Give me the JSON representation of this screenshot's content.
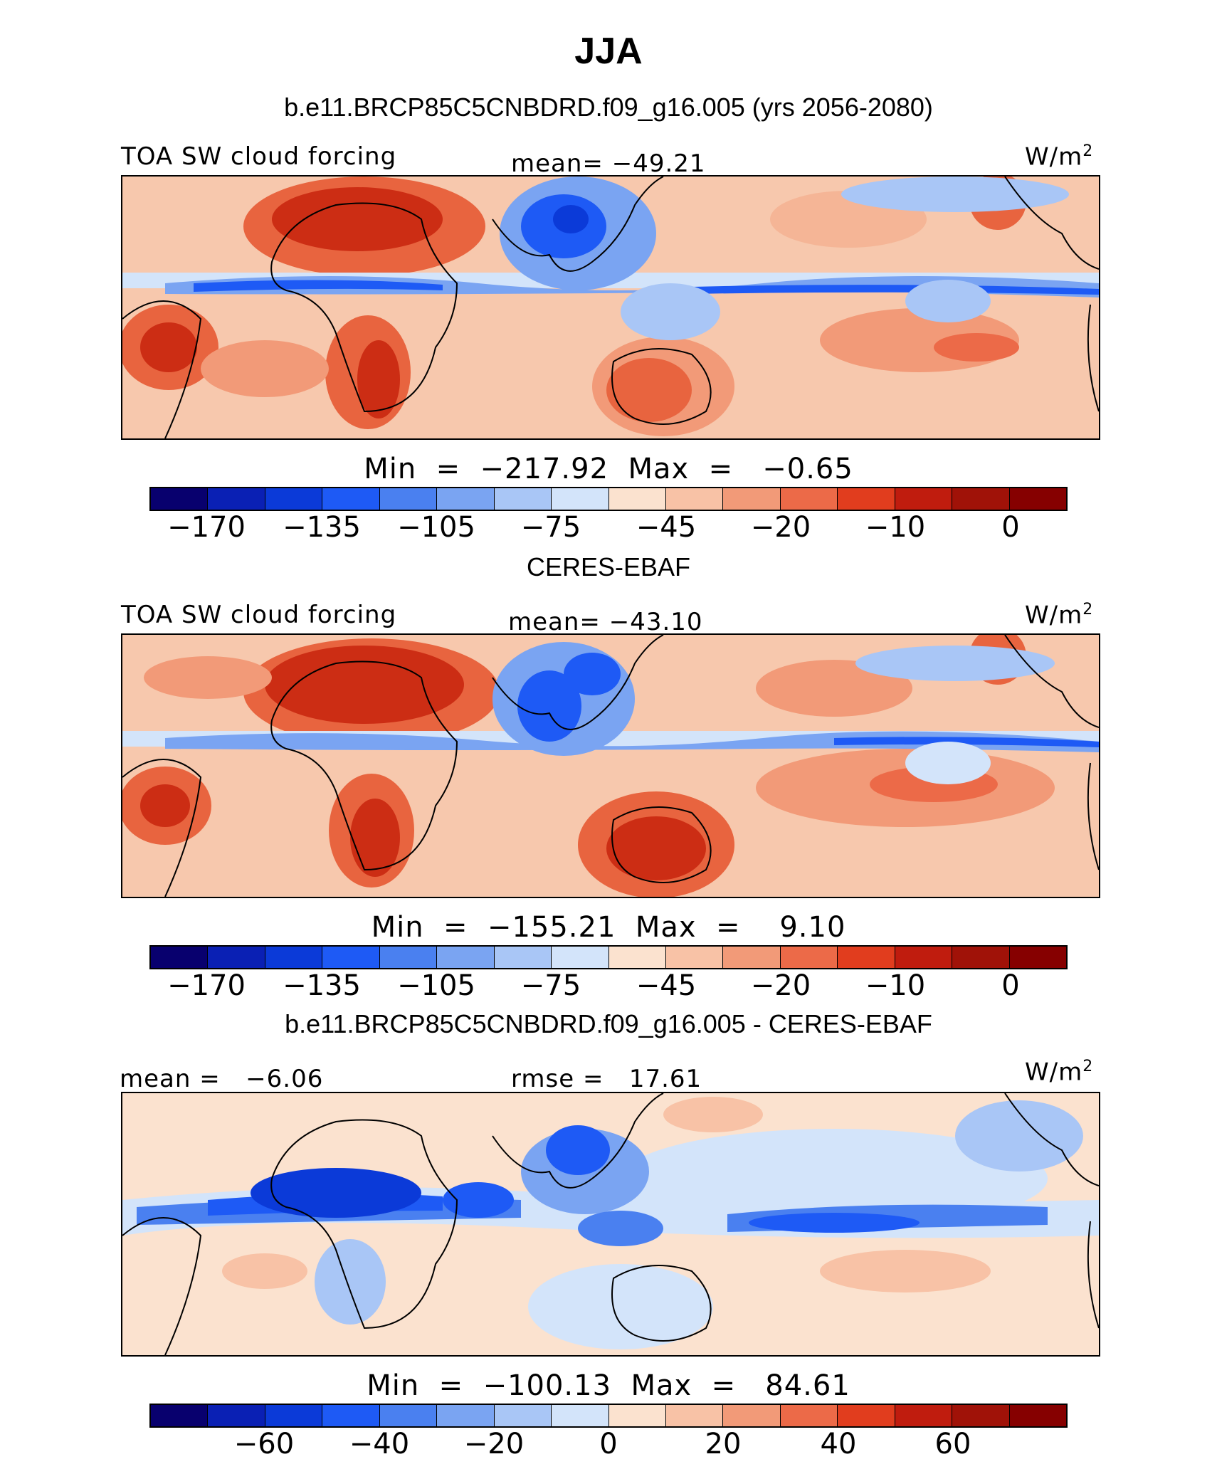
{
  "page": {
    "season": "JJA"
  },
  "panels": [
    {
      "heading": "b.e11.BRCP85C5CNBDRD.f09_g16.005 (yrs 2056-2080)",
      "left_label": "TOA SW cloud forcing",
      "center_label": "mean= −49.21",
      "units": "W/m",
      "units_exp": "2",
      "minmax": "Min  =  −217.92  Max  =   −0.65",
      "ticks": [
        "−170",
        "−135",
        "−105",
        "−75",
        "−45",
        "−20",
        "−10",
        "0"
      ]
    },
    {
      "heading": "CERES-EBAF",
      "left_label": "TOA SW cloud forcing",
      "center_label": "mean= −43.10",
      "units": "W/m",
      "units_exp": "2",
      "minmax": "Min  =  −155.21  Max  =    9.10",
      "ticks": [
        "−170",
        "−135",
        "−105",
        "−75",
        "−45",
        "−20",
        "−10",
        "0"
      ]
    },
    {
      "heading": "b.e11.BRCP85C5CNBDRD.f09_g16.005 - CERES-EBAF",
      "left_label": "mean =   −6.06",
      "center_label": "rmse =   17.61",
      "units": "W/m",
      "units_exp": "2",
      "minmax": "Min  =  −100.13  Max  =   84.61",
      "ticks": [
        "−60",
        "−40",
        "−20",
        "0",
        "20",
        "40",
        "60"
      ]
    }
  ],
  "colorbar_colors": [
    "#08006e",
    "#0a20b4",
    "#0b3ad8",
    "#1e5af5",
    "#4a80f0",
    "#7aa4f2",
    "#a9c6f6",
    "#d3e4fa",
    "#fbe2cf",
    "#f8c2a6",
    "#f29a78",
    "#ec6a48",
    "#e13d1e",
    "#c01c0e",
    "#a01208",
    "#860000"
  ]
}
